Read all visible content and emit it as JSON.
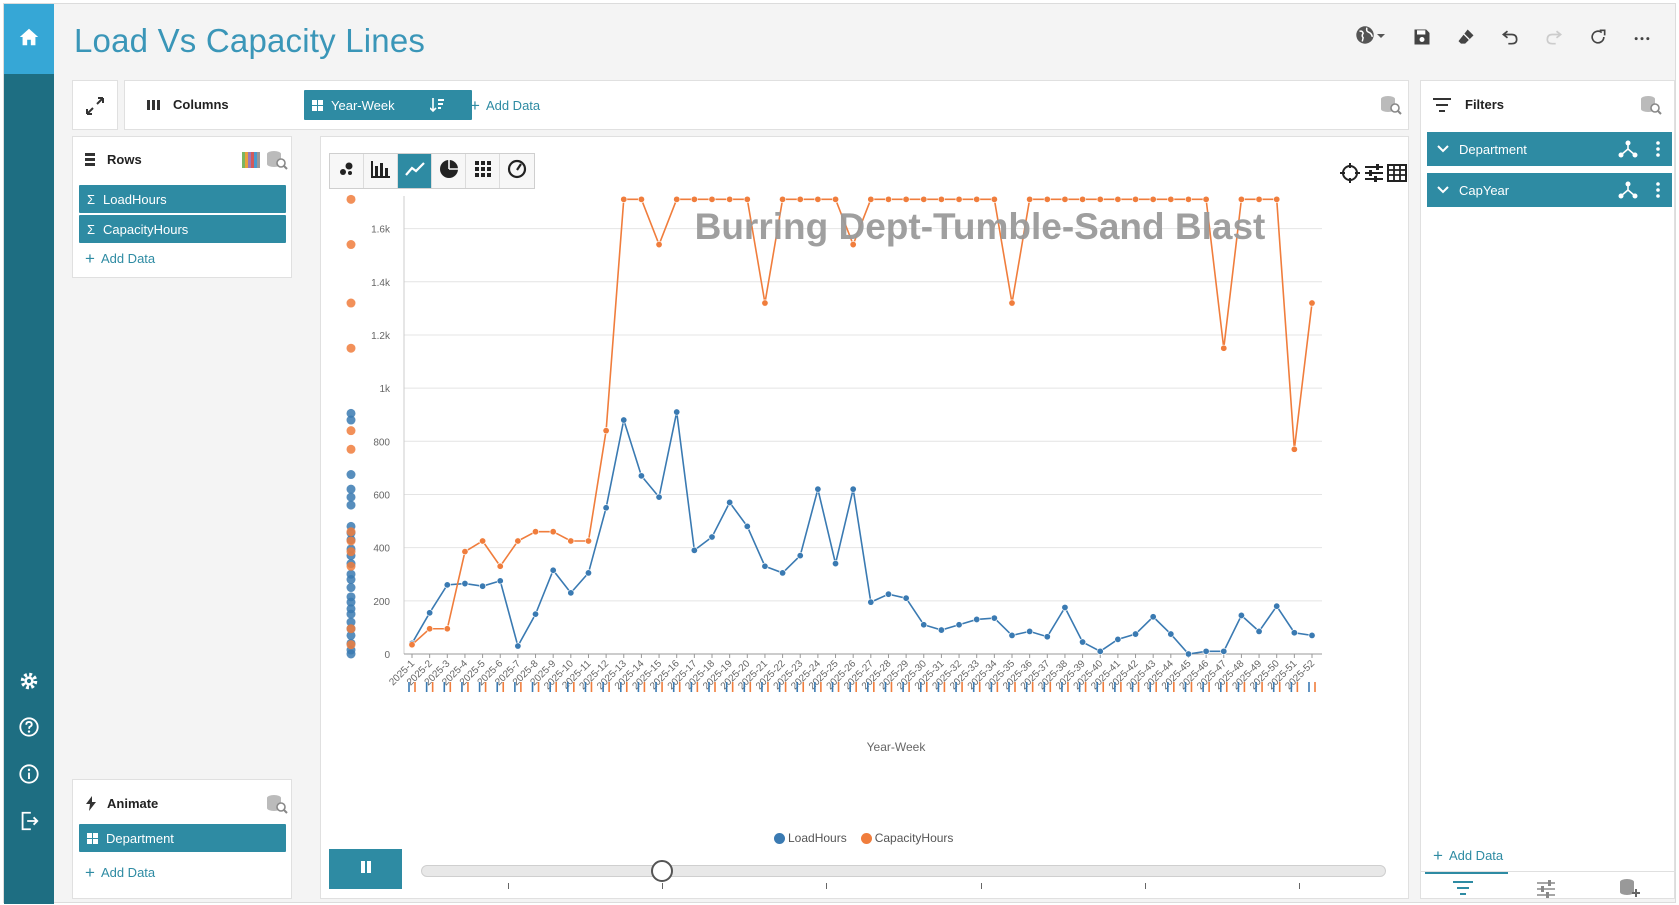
{
  "app": {
    "title": "Load Vs Capacity Lines"
  },
  "columns_panel": {
    "label": "Columns",
    "field": "Year-Week",
    "add_data": "Add Data"
  },
  "rows_panel": {
    "label": "Rows",
    "fields": [
      "LoadHours",
      "CapacityHours"
    ],
    "add_data": "Add Data"
  },
  "animate_panel": {
    "label": "Animate",
    "field": "Department",
    "add_data": "Add Data"
  },
  "filters_panel": {
    "label": "Filters",
    "items": [
      "Department",
      "CapYear"
    ],
    "add_data": "Add Data"
  },
  "colors": {
    "accent": "#2e8ba3",
    "sidebar": "#1e6e82",
    "home": "#36a7d6",
    "title": "#3a96b8",
    "load": "#3a7ab2",
    "capacity": "#f07d3c"
  },
  "chart_data": {
    "type": "line",
    "title": "Burring Dept-Tumble-Sand Blast",
    "xlabel": "Year-Week",
    "ylabel": "",
    "ylim": [
      0,
      1700
    ],
    "yticks": [
      0,
      200,
      400,
      600,
      800,
      1000,
      1200,
      1400,
      1600
    ],
    "ytick_labels": [
      "0",
      "200",
      "400",
      "600",
      "800",
      "1k",
      "1.2k",
      "1.4k",
      "1.6k"
    ],
    "categories": [
      "2025-1",
      "2025-2",
      "2025-3",
      "2025-4",
      "2025-5",
      "2025-6",
      "2025-7",
      "2025-8",
      "2025-9",
      "2025-10",
      "2025-11",
      "2025-12",
      "2025-13",
      "2025-14",
      "2025-15",
      "2025-16",
      "2025-17",
      "2025-18",
      "2025-19",
      "2025-20",
      "2025-21",
      "2025-22",
      "2025-23",
      "2025-24",
      "2025-25",
      "2025-26",
      "2025-27",
      "2025-28",
      "2025-29",
      "2025-30",
      "2025-31",
      "2025-32",
      "2025-33",
      "2025-34",
      "2025-35",
      "2025-36",
      "2025-37",
      "2025-38",
      "2025-39",
      "2025-40",
      "2025-41",
      "2025-42",
      "2025-43",
      "2025-44",
      "2025-45",
      "2025-46",
      "2025-47",
      "2025-48",
      "2025-49",
      "2025-50",
      "2025-51",
      "2025-52"
    ],
    "series": [
      {
        "name": "LoadHours",
        "color": "#3a7ab2",
        "values": [
          40,
          155,
          260,
          265,
          255,
          275,
          30,
          150,
          315,
          230,
          305,
          550,
          880,
          670,
          590,
          910,
          390,
          440,
          570,
          480,
          330,
          305,
          370,
          620,
          340,
          620,
          195,
          225,
          210,
          110,
          90,
          110,
          130,
          135,
          70,
          85,
          65,
          175,
          45,
          10,
          55,
          75,
          140,
          75,
          0,
          10,
          10,
          145,
          85,
          180,
          80,
          70
        ]
      },
      {
        "name": "CapacityHours",
        "color": "#f07d3c",
        "values": [
          35,
          95,
          95,
          385,
          425,
          330,
          425,
          460,
          460,
          425,
          425,
          840,
          1710,
          1710,
          1540,
          1710,
          1710,
          1710,
          1710,
          1710,
          1320,
          1710,
          1710,
          1710,
          1710,
          1540,
          1710,
          1710,
          1710,
          1710,
          1710,
          1710,
          1710,
          1710,
          1320,
          1710,
          1710,
          1710,
          1710,
          1710,
          1710,
          1710,
          1710,
          1710,
          1710,
          1710,
          1150,
          1710,
          1710,
          1710,
          770,
          1320
        ]
      }
    ],
    "marginal_load": [
      905,
      880,
      675,
      620,
      590,
      560,
      480,
      455,
      430,
      395,
      370,
      340,
      300,
      280,
      250,
      215,
      195,
      170,
      150,
      120,
      95,
      70,
      40,
      15,
      0
    ],
    "marginal_capacity": [
      1710,
      1540,
      1320,
      1150,
      840,
      770,
      460,
      425,
      385,
      330,
      95,
      35
    ],
    "legend": [
      "LoadHours",
      "CapacityHours"
    ],
    "legend_position": "bottom",
    "grid": true,
    "animation_progress": 0.25
  }
}
